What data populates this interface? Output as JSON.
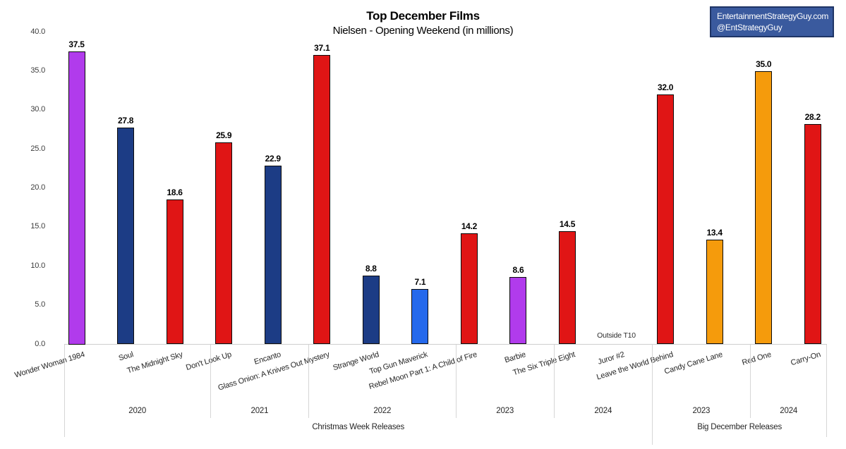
{
  "header": {
    "title": "Top December Films",
    "subtitle": "Nielsen - Opening Weekend (in millions)",
    "badge_line1": "EntertainmentStrategyGuy.com",
    "badge_line2": "@EntStrategyGuy"
  },
  "chart_data": {
    "type": "bar",
    "title": "Top December Films",
    "subtitle": "Nielsen - Opening Weekend (in millions)",
    "ylim": [
      0,
      40
    ],
    "ytick_step": 5,
    "yticks": [
      "0.0",
      "5.0",
      "10.0",
      "15.0",
      "20.0",
      "25.0",
      "30.0",
      "35.0",
      "40.0"
    ],
    "grid": false,
    "legend": "none",
    "films": [
      {
        "label": "Wonder Woman 1984",
        "value": 37.5,
        "color": "purple"
      },
      {
        "label": "Soul",
        "value": 27.8,
        "color": "navy"
      },
      {
        "label": "The Midnight Sky",
        "value": 18.6,
        "color": "red"
      },
      {
        "label": "Don't Look Up",
        "value": 25.9,
        "color": "red"
      },
      {
        "label": "Encanto",
        "value": 22.9,
        "color": "navy"
      },
      {
        "label": "Glass Onion: A Knives Out Mystery",
        "value": 37.1,
        "color": "red"
      },
      {
        "label": "Strange World",
        "value": 8.8,
        "color": "navy"
      },
      {
        "label": "Top Gun Maverick",
        "value": 7.1,
        "color": "blue"
      },
      {
        "label": "Rebel Moon Part 1: A Child of Fire",
        "value": 14.2,
        "color": "red"
      },
      {
        "label": "Barbie",
        "value": 8.6,
        "color": "purple"
      },
      {
        "label": "The Six Triple Eight",
        "value": 14.5,
        "color": "red"
      },
      {
        "label": "Juror #2",
        "value": null,
        "note": "Outside T10"
      },
      {
        "label": "Leave the World Behind",
        "value": 32.0,
        "color": "red"
      },
      {
        "label": "Candy Cane Lane",
        "value": 13.4,
        "color": "orange"
      },
      {
        "label": "Red One",
        "value": 35.0,
        "color": "orange"
      },
      {
        "label": "Carry-On",
        "value": 28.2,
        "color": "red"
      }
    ],
    "year_groups": [
      {
        "label": "2020",
        "span": 3
      },
      {
        "label": "2021",
        "span": 2
      },
      {
        "label": "2022",
        "span": 3
      },
      {
        "label": "2023",
        "span": 2
      },
      {
        "label": "2024",
        "span": 2
      },
      {
        "label": "2023",
        "span": 2
      },
      {
        "label": "2024",
        "span": 2
      }
    ],
    "category_groups": [
      {
        "label": "Christmas Week Releases",
        "span": 12
      },
      {
        "label": "Big December Releases",
        "span": 4
      }
    ],
    "colors": {
      "purple": "#b13bec",
      "navy": "#1c3c85",
      "red": "#e01515",
      "blue": "#2569ec",
      "orange": "#f59b0c"
    }
  }
}
